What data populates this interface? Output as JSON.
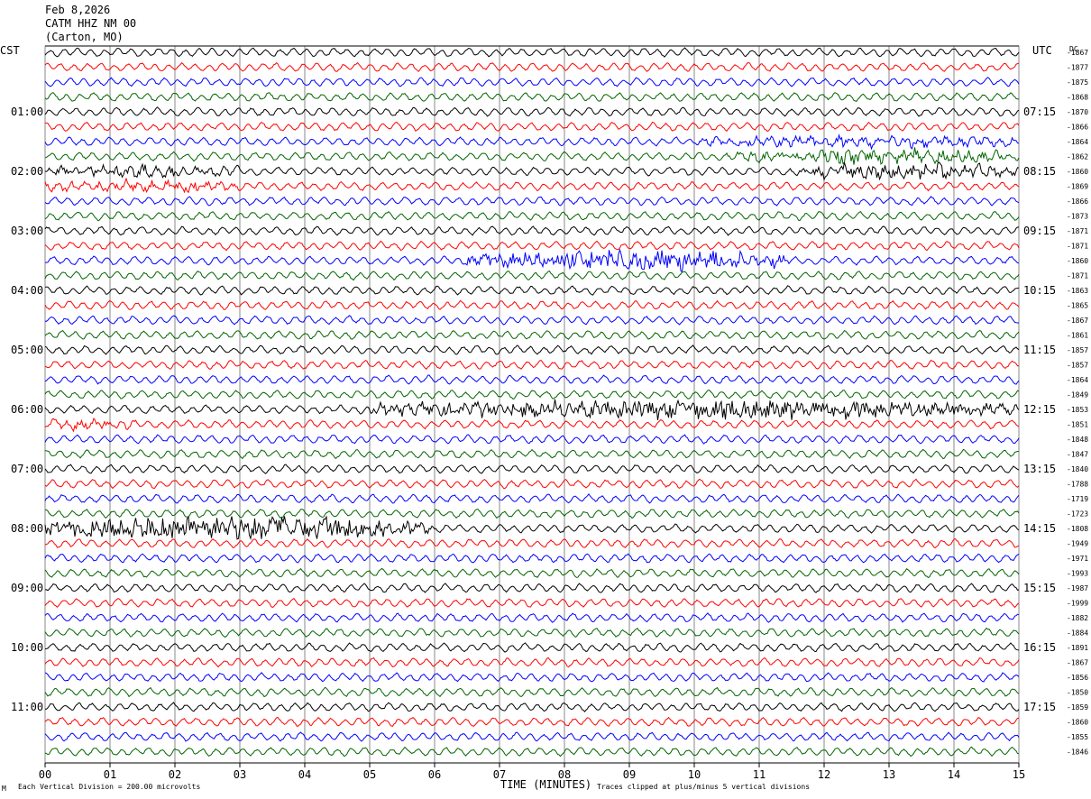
{
  "header": {
    "date": "Feb 8,2026",
    "station": "CATM HHZ NM 00",
    "location": "(Carton, MO)"
  },
  "left_tz": "CST",
  "right_tz": "UTC",
  "right_header": "DC",
  "footer": {
    "corner_mark": "M",
    "scale": "Each Vertical Division =  200.00 microvolts",
    "xaxis_title": "TIME (MINUTES)",
    "clip_note": "Traces clipped at plus/minus 5 vertical divisions"
  },
  "chart_data": {
    "type": "line",
    "title": "CATM HHZ NM 00",
    "xlabel": "TIME (MINUTES)",
    "xlim": [
      0,
      15
    ],
    "x_ticks": [
      "00",
      "01",
      "02",
      "03",
      "04",
      "05",
      "06",
      "07",
      "08",
      "09",
      "10",
      "11",
      "12",
      "13",
      "14",
      "15"
    ],
    "trace_colors": [
      "#000000",
      "#ff0000",
      "#0000ff",
      "#006400"
    ],
    "trace_count": 48,
    "left_hour_labels": [
      "01:00",
      "02:00",
      "03:00",
      "04:00",
      "05:00",
      "06:00",
      "07:00",
      "08:00",
      "09:00",
      "10:00",
      "11:00"
    ],
    "right_hour_labels": [
      "07:15",
      "08:15",
      "09:15",
      "10:15",
      "11:15",
      "12:15",
      "13:15",
      "14:15",
      "15:15",
      "16:15",
      "17:15"
    ],
    "dc_offsets": [
      "-1867",
      "-1877",
      "-1875",
      "-1868",
      "-1870",
      "-1866",
      "-1864",
      "-1862",
      "-1860",
      "-1869",
      "-1866",
      "-1873",
      "-1871",
      "-1871",
      "-1860",
      "-1871",
      "-1863",
      "-1865",
      "-1867",
      "-1861",
      "-1857",
      "-1857",
      "-1864",
      "-1849",
      "-1853",
      "-1851",
      "-1848",
      "-1847",
      "-1840",
      "-1788",
      "-1719",
      "-1723",
      "-1808",
      "-1949",
      "-1971",
      "-1993",
      "-1987",
      "-1999",
      "-1882",
      "-1884",
      "-1891",
      "-1867",
      "-1856",
      "-1850",
      "-1859",
      "-1860",
      "-1855",
      "-1846"
    ],
    "events": [
      {
        "trace": 6,
        "x_start": 10.0,
        "x_end": 15.0,
        "amplitude": 0.6
      },
      {
        "trace": 7,
        "x_start": 10.5,
        "x_end": 15.0,
        "amplitude": 0.8
      },
      {
        "trace": 8,
        "x_start": 0.0,
        "x_end": 3.0,
        "amplitude": 0.7
      },
      {
        "trace": 8,
        "x_start": 11.5,
        "x_end": 15.0,
        "amplitude": 0.9
      },
      {
        "trace": 9,
        "x_start": 0.0,
        "x_end": 3.0,
        "amplitude": 0.6
      },
      {
        "trace": 14,
        "x_start": 6.5,
        "x_end": 11.5,
        "amplitude": 1.4
      },
      {
        "trace": 24,
        "x_start": 5.0,
        "x_end": 15.0,
        "amplitude": 1.2
      },
      {
        "trace": 25,
        "x_start": 0.0,
        "x_end": 1.5,
        "amplitude": 0.5
      },
      {
        "trace": 32,
        "x_start": 0.0,
        "x_end": 6.0,
        "amplitude": 1.6
      }
    ]
  }
}
